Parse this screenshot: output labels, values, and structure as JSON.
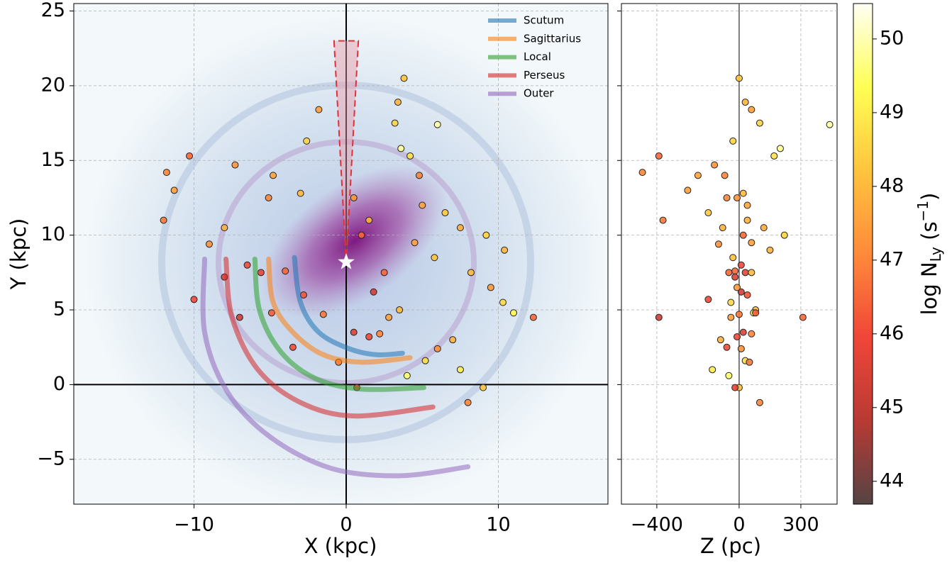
{
  "chart_data": [
    {
      "type": "scatter",
      "xlabel": "X (kpc)",
      "ylabel": "Y (kpc)",
      "xlim": [
        -17.9,
        17.2
      ],
      "ylim": [
        -8.0,
        25.5
      ],
      "xticks": [
        {
          "value": -10,
          "label": "−10"
        },
        0,
        10
      ],
      "yticks": [
        {
          "value": -5,
          "label": "−5"
        },
        0,
        5,
        10,
        15,
        20,
        25
      ],
      "grid": true,
      "legend": "upper right",
      "points": {
        "x": [
          -11.8,
          -12.0,
          -11.3,
          -10.3,
          -9.0,
          -8.0,
          -5.1,
          -3.0,
          -1.8,
          -2.6,
          -7.3,
          -4.8,
          -6.5,
          -5.6,
          -4.0,
          -2.8,
          -1.5,
          0.5,
          1.5,
          2.2,
          2.8,
          3.5,
          1.8,
          2.5,
          3.2,
          3.6,
          4.2,
          3.8,
          3.4,
          4.8,
          5.0,
          6.5,
          7.5,
          9.2,
          10.4,
          8.2,
          9.5,
          10.3,
          11.0,
          12.3,
          7.0,
          6.0,
          7.5,
          5.2,
          4.0,
          9.0,
          8.0,
          0.7,
          -0.5,
          -3.5,
          -4.9,
          -8.0,
          -10.0,
          1.0,
          0.5,
          1.5,
          5.8,
          4.5,
          6.0,
          -7.0
        ],
        "y": [
          14.2,
          11.0,
          13.0,
          15.3,
          9.4,
          10.5,
          12.5,
          12.8,
          18.4,
          16.3,
          14.7,
          14.0,
          8.0,
          7.5,
          7.6,
          6.0,
          4.7,
          3.5,
          3.2,
          3.4,
          4.5,
          5.0,
          6.2,
          7.5,
          17.5,
          15.8,
          15.3,
          20.5,
          18.9,
          14.0,
          12.0,
          11.5,
          10.5,
          10.0,
          9.0,
          7.5,
          6.5,
          5.5,
          4.8,
          4.5,
          3.0,
          2.4,
          1.0,
          1.6,
          0.6,
          -0.2,
          -1.2,
          -0.2,
          1.5,
          2.5,
          4.8,
          7.2,
          5.7,
          10.0,
          12.5,
          11.0,
          8.5,
          9.5,
          17.4,
          4.5
        ],
        "color_values": [
          47.0,
          46.8,
          47.5,
          46.5,
          47.2,
          47.8,
          47.0,
          48.0,
          47.5,
          48.5,
          47.3,
          47.6,
          46.0,
          45.8,
          46.5,
          46.2,
          46.8,
          45.5,
          46.0,
          47.0,
          47.5,
          48.0,
          45.3,
          46.5,
          48.5,
          49.8,
          48.8,
          48.2,
          47.9,
          47.0,
          47.6,
          48.3,
          47.7,
          48.5,
          47.9,
          48.0,
          47.4,
          48.6,
          49.2,
          46.5,
          47.8,
          47.2,
          49.0,
          48.7,
          49.5,
          48.2,
          47.0,
          45.8,
          46.8,
          46.0,
          46.3,
          45.5,
          46.0,
          46.5,
          47.3,
          47.8,
          48.2,
          47.5,
          49.9,
          45.2
        ]
      },
      "arms": [
        {
          "name": "Scutum",
          "color": "#1f77b4",
          "x": [
            -3.4,
            -3.0,
            -1.8,
            0.2,
            2.0,
            3.7
          ],
          "y": [
            8.5,
            5.5,
            3.5,
            2.4,
            2.0,
            2.1
          ]
        },
        {
          "name": "Sagittarius",
          "color": "#ff7f0e",
          "x": [
            -5.1,
            -4.8,
            -3.5,
            -1.5,
            1.0,
            4.2
          ],
          "y": [
            8.4,
            5.5,
            3.5,
            2.0,
            1.5,
            1.8
          ]
        },
        {
          "name": "Local",
          "color": "#2ca02c",
          "x": [
            -6.0,
            -5.7,
            -4.3,
            -2.0,
            1.0,
            5.1
          ],
          "y": [
            8.4,
            5.0,
            2.2,
            0.4,
            -0.3,
            -0.2
          ]
        },
        {
          "name": "Perseus",
          "color": "#d62728",
          "x": [
            -7.9,
            -7.5,
            -5.8,
            -3.0,
            0.5,
            5.7
          ],
          "y": [
            8.4,
            4.5,
            1.0,
            -1.2,
            -2.1,
            -1.5
          ]
        },
        {
          "name": "Outer",
          "color": "#9467bd",
          "x": [
            -9.3,
            -9.3,
            -7.8,
            -5.0,
            -1.0,
            3.5,
            8.0
          ],
          "y": [
            8.4,
            3.5,
            -0.5,
            -3.5,
            -5.6,
            -6.1,
            -5.5
          ]
        }
      ],
      "sun": {
        "x": 0,
        "y": 8.2
      },
      "cone": {
        "x": [
          -0.8,
          0,
          0.8
        ],
        "y": [
          23,
          8.2,
          23
        ]
      }
    },
    {
      "type": "scatter",
      "xlabel": "Z (pc)",
      "xlim": [
        -572,
        476
      ],
      "xticks": [
        {
          "value": -400,
          "label": "−400"
        },
        0,
        300
      ],
      "grid": true,
      "points": {
        "x": [
          -470,
          -370,
          -250,
          -390,
          -100,
          -80,
          -60,
          20,
          60,
          -30,
          -120,
          -200,
          10,
          30,
          -20,
          40,
          0,
          20,
          -10,
          60,
          -40,
          80,
          10,
          -50,
          100,
          200,
          170,
          0,
          30,
          -70,
          40,
          -150,
          120,
          220,
          150,
          60,
          -10,
          -40,
          70,
          310,
          -90,
          10,
          -130,
          30,
          -50,
          0,
          100,
          -20,
          50,
          -60,
          80,
          -20,
          -150,
          20,
          -10,
          40,
          -30,
          60,
          440,
          -390
        ],
        "y": [
          14.2,
          11.0,
          13.0,
          15.3,
          9.4,
          10.5,
          12.5,
          12.8,
          18.4,
          16.3,
          14.7,
          14.0,
          8.0,
          7.5,
          7.6,
          6.0,
          4.7,
          3.5,
          3.2,
          3.4,
          4.5,
          5.0,
          6.2,
          7.5,
          17.5,
          15.8,
          15.3,
          20.5,
          18.9,
          14.0,
          12.0,
          11.5,
          10.5,
          10.0,
          9.0,
          7.5,
          6.5,
          5.5,
          4.8,
          4.5,
          3.0,
          2.4,
          1.0,
          1.6,
          0.6,
          -0.2,
          -1.2,
          -0.2,
          1.5,
          2.5,
          4.8,
          7.2,
          5.7,
          10.0,
          12.5,
          11.0,
          8.5,
          9.5,
          17.4,
          4.5
        ],
        "color_values": [
          47.0,
          46.8,
          47.5,
          46.5,
          47.2,
          47.8,
          47.0,
          48.0,
          47.5,
          48.5,
          47.3,
          47.6,
          46.0,
          45.8,
          46.5,
          46.2,
          46.8,
          45.5,
          46.0,
          47.0,
          47.5,
          48.0,
          45.3,
          46.5,
          48.5,
          49.8,
          48.8,
          48.2,
          47.9,
          47.0,
          47.6,
          48.3,
          47.7,
          48.5,
          47.9,
          48.0,
          47.4,
          48.6,
          49.2,
          46.5,
          47.8,
          47.2,
          49.0,
          48.7,
          49.5,
          48.2,
          47.0,
          45.8,
          46.8,
          46.0,
          46.3,
          45.5,
          46.0,
          46.5,
          47.3,
          47.8,
          48.2,
          47.5,
          49.9,
          45.2
        ]
      },
      "colorbar": {
        "label": [
          "log N",
          "Ly",
          " (s",
          "−1",
          ")"
        ],
        "lim": [
          43.69,
          50.48
        ],
        "ticks": [
          44,
          45,
          46,
          47,
          48,
          49,
          50
        ],
        "colormap": [
          "#554444",
          "#b83a34",
          "#f04638",
          "#ff8a3a",
          "#ffc43e",
          "#ffff55",
          "#fffff5"
        ]
      }
    }
  ]
}
